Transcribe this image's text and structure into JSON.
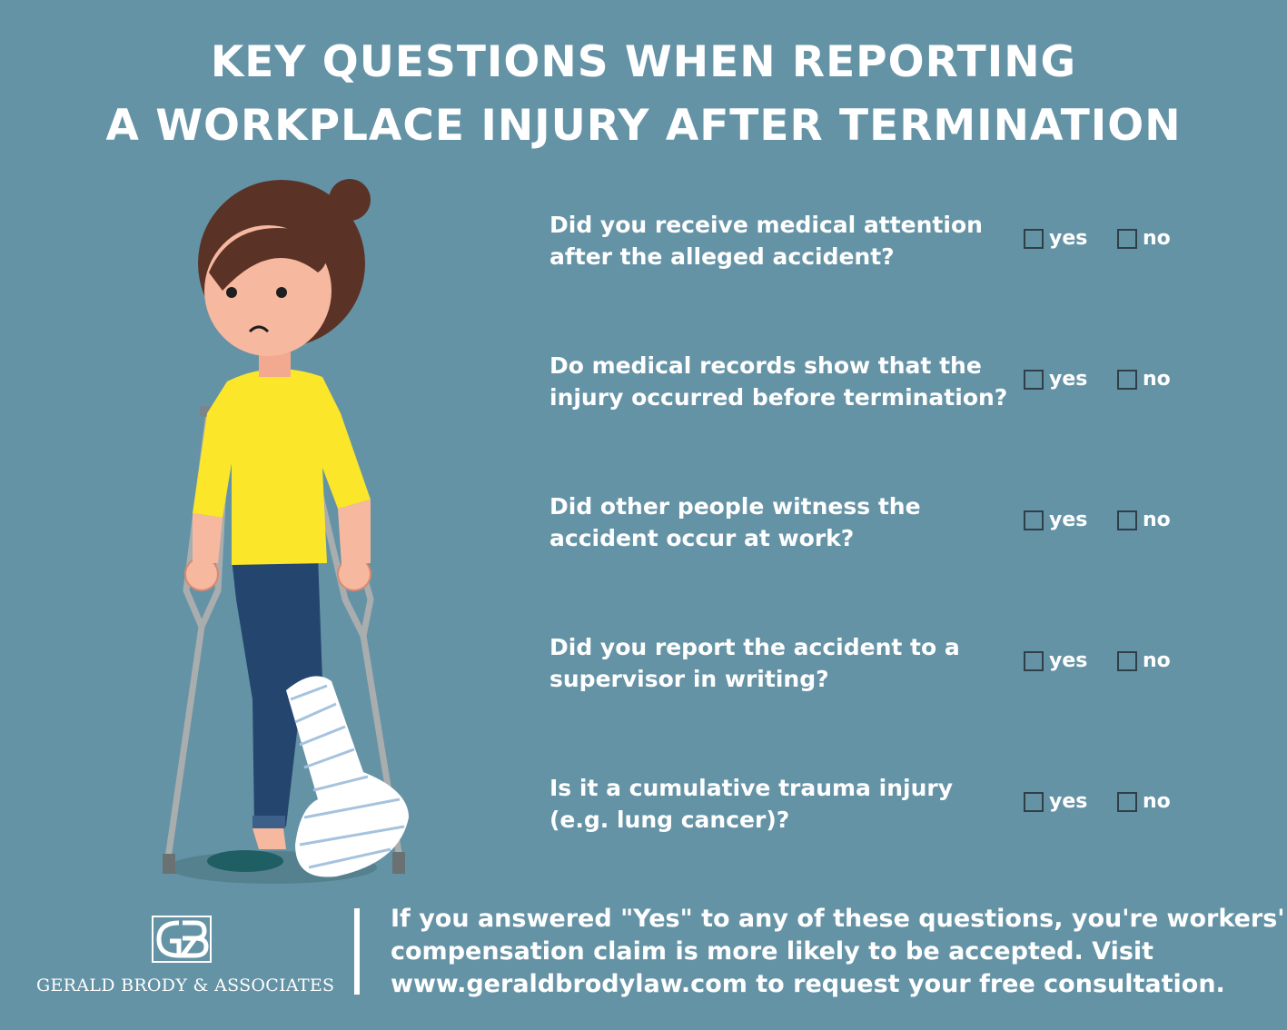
{
  "title": {
    "line1": "KEY QUESTIONS WHEN REPORTING",
    "line2": "A WORKPLACE INJURY AFTER TERMINATION"
  },
  "questions": [
    {
      "line1": "Did you receive medical attention",
      "line2": "after the alleged accident?",
      "yes": "yes",
      "no": "no"
    },
    {
      "line1": "Do medical records show that the",
      "line2": "injury occurred before termination?",
      "yes": "yes",
      "no": "no"
    },
    {
      "line1": "Did other people witness the",
      "line2": "accident occur at work?",
      "yes": "yes",
      "no": "no"
    },
    {
      "line1": "Did you report the accident to a",
      "line2": "supervisor in writing?",
      "yes": "yes",
      "no": "no"
    },
    {
      "line1": "Is it a cumulative trauma injury",
      "line2": "(e.g. lung cancer)?",
      "yes": "yes",
      "no": "no"
    }
  ],
  "logo": {
    "name": "GERALD BRODY & ASSOCIATES"
  },
  "footer": {
    "line1": "If you answered \"Yes\" to any of these questions, you're workers'",
    "line2": "compensation claim is more likely to be accepted. Visit",
    "line3": "www.geraldbrodylaw.com to request your free consultation."
  },
  "colors": {
    "background": "#6593a6",
    "text": "#ffffff",
    "shirt": "#fbe62a",
    "jeans": "#24466e",
    "hair": "#5a3326",
    "skin": "#f7b8a0",
    "crutch": "#a9adae",
    "cast": "#ffffff"
  },
  "icons": [
    "logo-gb-icon",
    "checkbox-icon",
    "woman-with-crutches-illustration"
  ]
}
